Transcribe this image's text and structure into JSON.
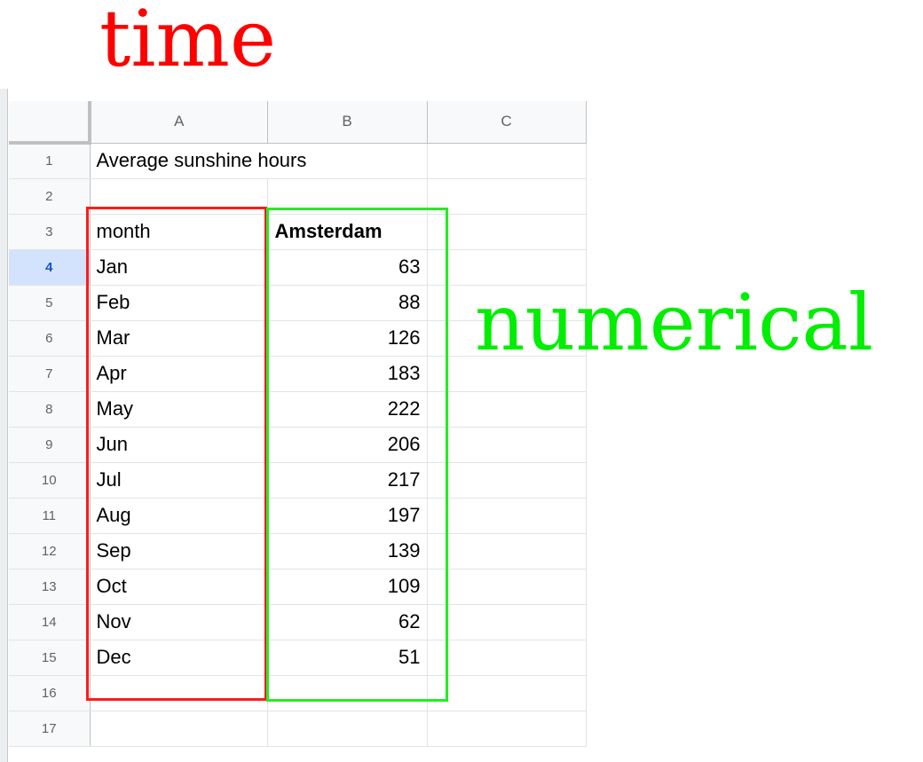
{
  "annotations": {
    "time_label": "time",
    "numerical_label": "numerical",
    "time_color": "#ff0000",
    "numerical_color": "#00ee00"
  },
  "sheet": {
    "columns": [
      "A",
      "B",
      "C"
    ],
    "active_row": 4,
    "rows": [
      {
        "num": "1",
        "a": "Average sunshine hours",
        "b": ""
      },
      {
        "num": "2",
        "a": "",
        "b": ""
      },
      {
        "num": "3",
        "a": "month",
        "b": "Amsterdam"
      },
      {
        "num": "4",
        "a": "Jan",
        "b": "63"
      },
      {
        "num": "5",
        "a": "Feb",
        "b": "88"
      },
      {
        "num": "6",
        "a": "Mar",
        "b": "126"
      },
      {
        "num": "7",
        "a": "Apr",
        "b": "183"
      },
      {
        "num": "8",
        "a": "May",
        "b": "222"
      },
      {
        "num": "9",
        "a": "Jun",
        "b": "206"
      },
      {
        "num": "10",
        "a": "Jul",
        "b": "217"
      },
      {
        "num": "11",
        "a": "Aug",
        "b": "197"
      },
      {
        "num": "12",
        "a": "Sep",
        "b": "139"
      },
      {
        "num": "13",
        "a": "Oct",
        "b": "109"
      },
      {
        "num": "14",
        "a": "Nov",
        "b": "62"
      },
      {
        "num": "15",
        "a": "Dec",
        "b": "51"
      },
      {
        "num": "16",
        "a": "",
        "b": ""
      },
      {
        "num": "17",
        "a": "",
        "b": ""
      }
    ]
  }
}
